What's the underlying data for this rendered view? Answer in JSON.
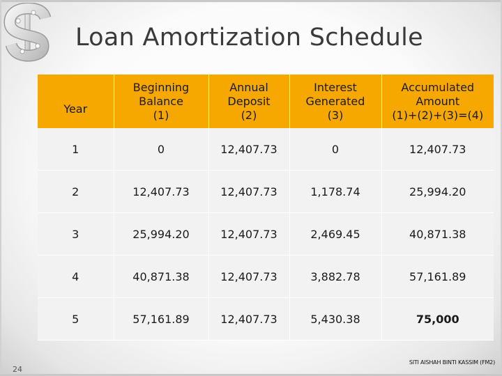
{
  "slide": {
    "title": "Loan Amortization Schedule",
    "page_number": "24",
    "footer": "SITI AISHAH BINTI KASSIM (FM2)"
  },
  "colors": {
    "header_bg": "#f7a800",
    "row_bg": "#f2f2f2"
  },
  "table": {
    "headers": [
      [
        "Year"
      ],
      [
        "Beginning",
        "Balance",
        "(1)"
      ],
      [
        "Annual",
        "Deposit",
        "(2)"
      ],
      [
        "Interest",
        "Generated",
        "(3)"
      ],
      [
        "Accumulated",
        "Amount",
        "(1)+(2)+(3)=(4)"
      ]
    ],
    "rows": [
      [
        "1",
        "0",
        "12,407.73",
        "0",
        "12,407.73"
      ],
      [
        "2",
        "12,407.73",
        "12,407.73",
        "1,178.74",
        "25,994.20"
      ],
      [
        "3",
        "25,994.20",
        "12,407.73",
        "2,469.45",
        "40,871.38"
      ],
      [
        "4",
        "40,871.38",
        "12,407.73",
        "3,882.78",
        "57,161.89"
      ],
      [
        "5",
        "57,161.89",
        "12,407.73",
        "5,430.38",
        "75,000"
      ]
    ]
  }
}
